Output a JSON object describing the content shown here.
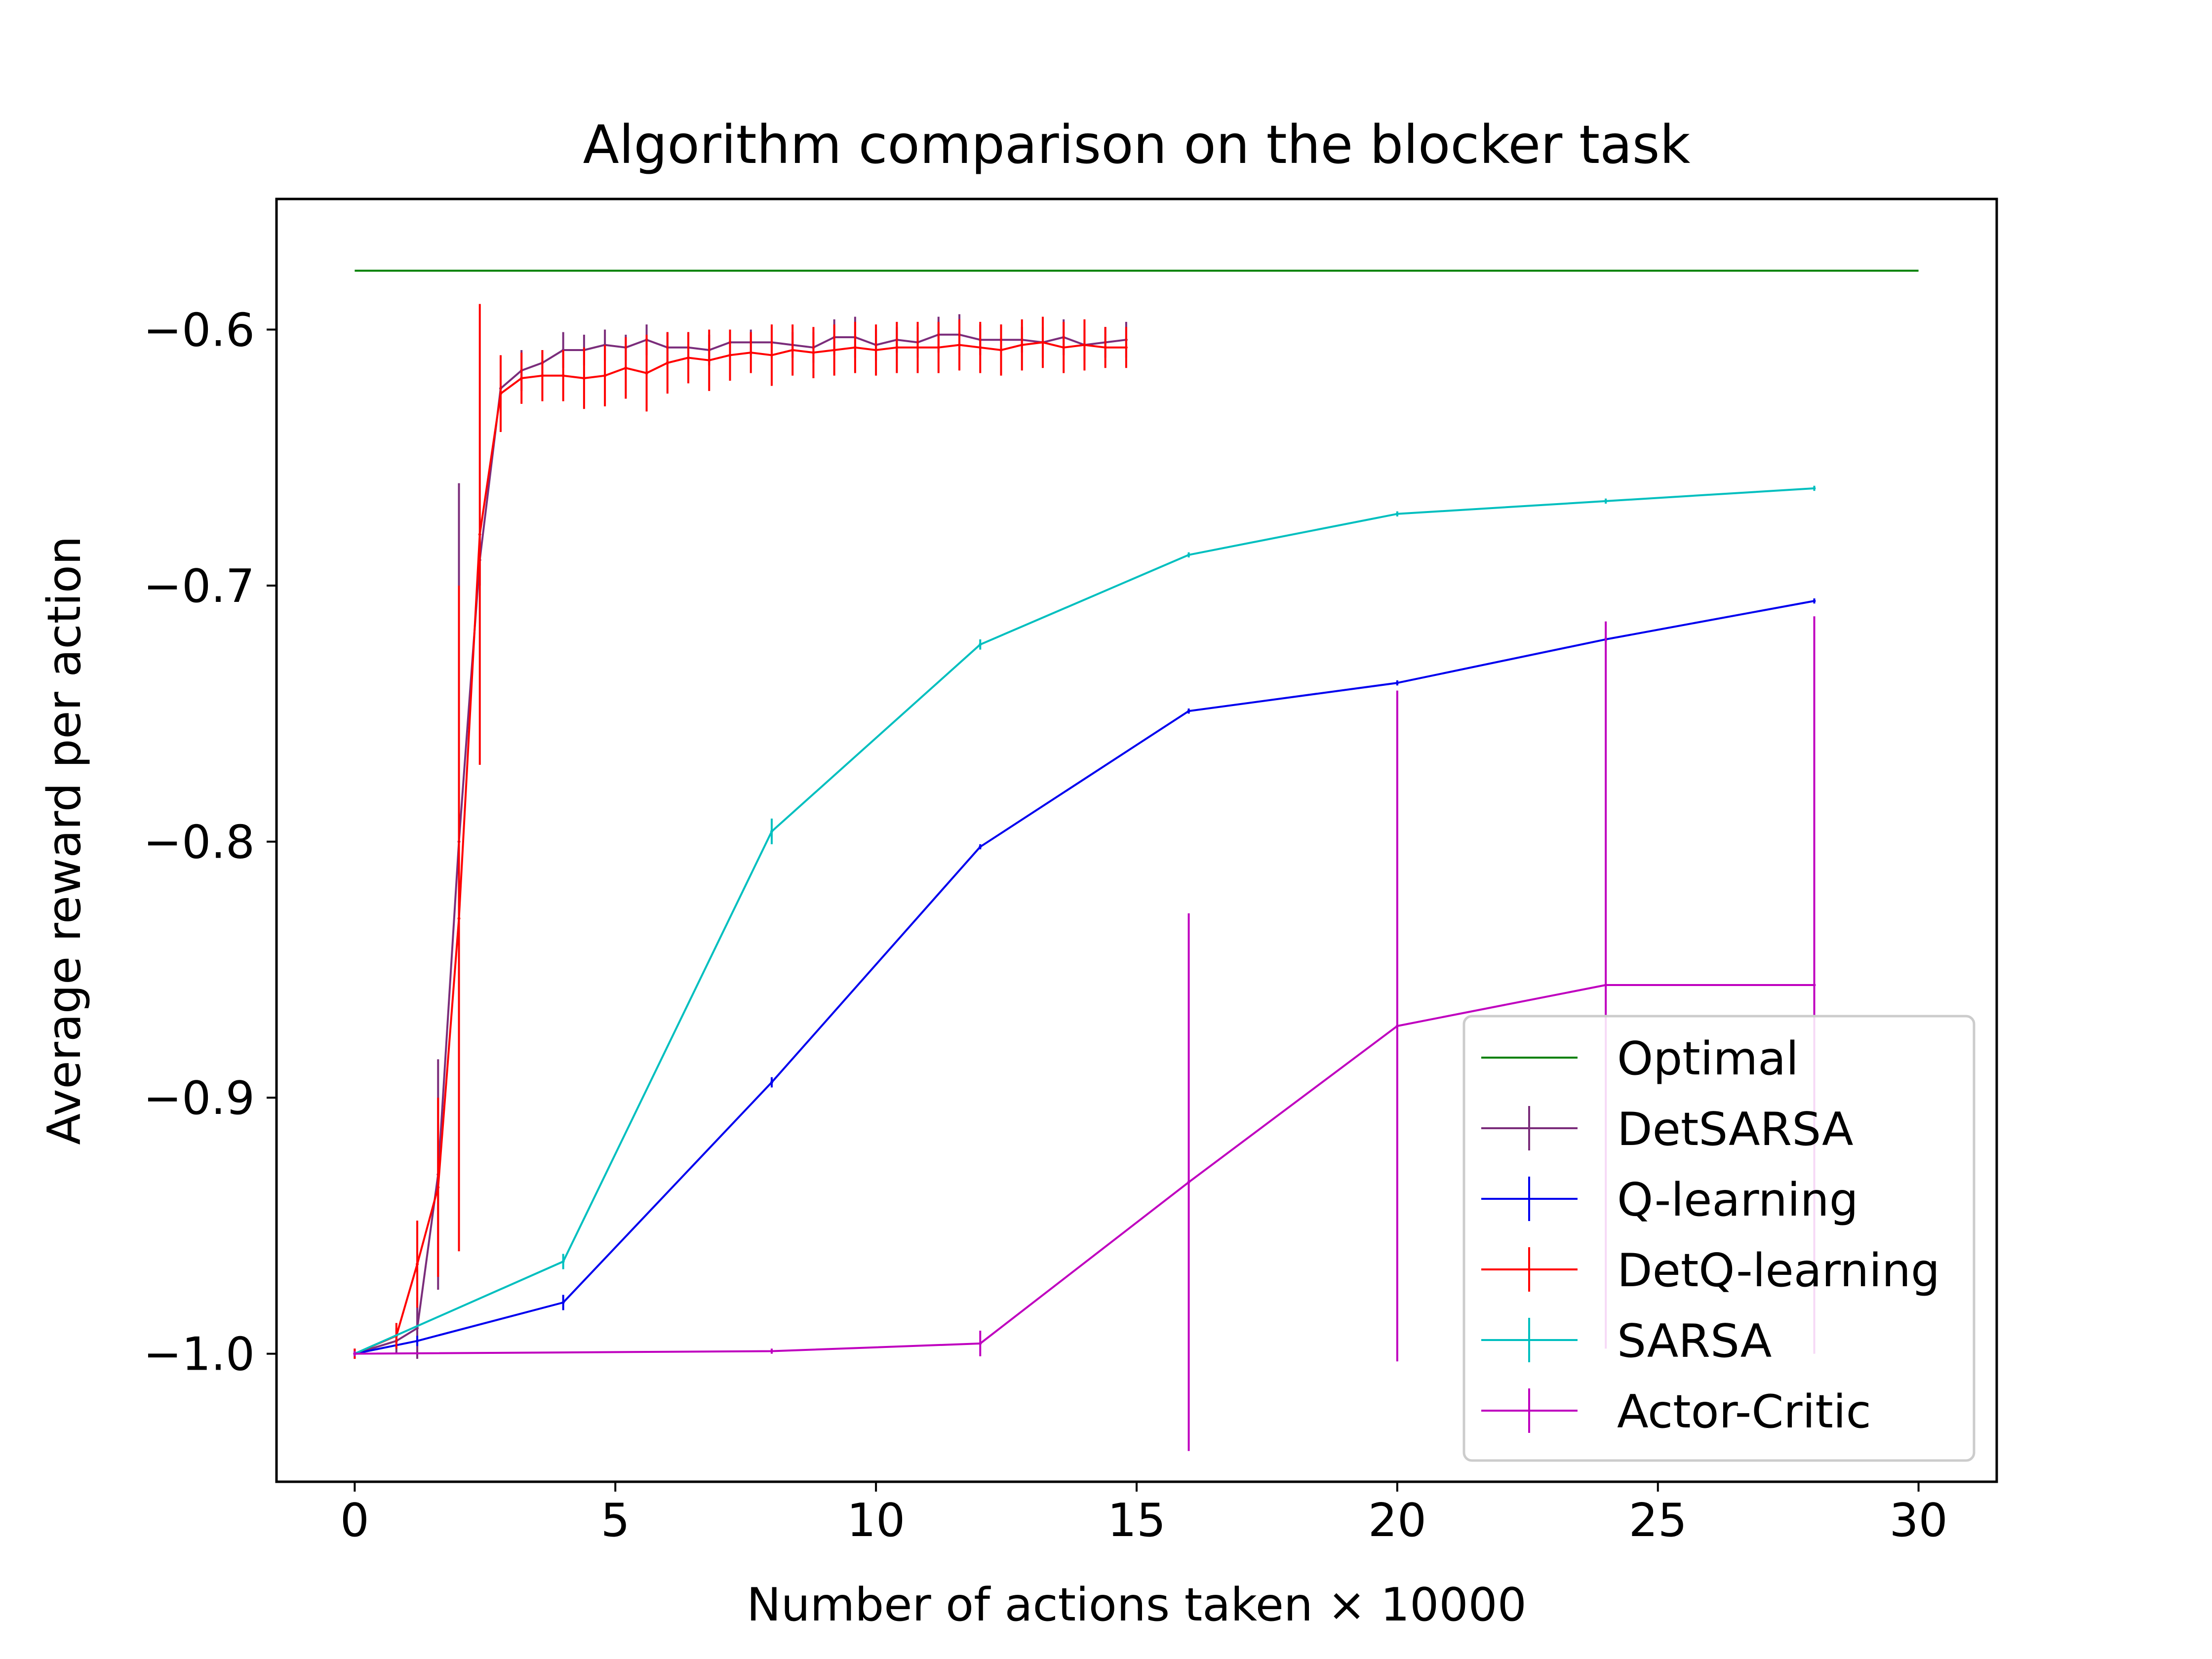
{
  "chart_data": {
    "type": "line",
    "title": "Algorithm comparison on the blocker task",
    "xlabel": "Number of actions taken × 10000",
    "ylabel": "Average reward per action",
    "xlim": [
      -1.5,
      31.5
    ],
    "ylim": [
      -1.05,
      -0.549
    ],
    "xticks": [
      0,
      5,
      10,
      15,
      20,
      25,
      30
    ],
    "xtick_labels": [
      "0",
      "5",
      "10",
      "15",
      "20",
      "25",
      "30"
    ],
    "yticks": [
      -1.0,
      -0.9,
      -0.8,
      -0.7,
      -0.6
    ],
    "ytick_labels": [
      "−1.0",
      "−0.9",
      "−0.8",
      "−0.7",
      "−0.6"
    ],
    "grid": false,
    "legend_position": "lower right",
    "series": [
      {
        "name": "Optimal",
        "color": "#008000",
        "errorbars": false,
        "x": [
          0,
          30
        ],
        "y": [
          -0.577,
          -0.577
        ]
      },
      {
        "name": "DetSARSA",
        "color": "#7b2d7b",
        "errorbars": true,
        "x": [
          0,
          0.8,
          1.2,
          1.6,
          2.0,
          2.4,
          2.8,
          3.2,
          3.6,
          4.0,
          4.4,
          4.8,
          5.2,
          5.6,
          6.0,
          6.4,
          6.8,
          7.2,
          7.6,
          8.0,
          8.4,
          8.8,
          9.2,
          9.6,
          10.0,
          10.4,
          10.8,
          11.2,
          11.6,
          12.0,
          12.4,
          12.8,
          13.2,
          13.6,
          14.0,
          14.4,
          14.8
        ],
        "y": [
          -1.0,
          -0.995,
          -0.99,
          -0.93,
          -0.8,
          -0.69,
          -0.623,
          -0.616,
          -0.613,
          -0.608,
          -0.608,
          -0.606,
          -0.607,
          -0.604,
          -0.607,
          -0.607,
          -0.608,
          -0.605,
          -0.605,
          -0.605,
          -0.606,
          -0.607,
          -0.603,
          -0.603,
          -0.606,
          -0.604,
          -0.605,
          -0.602,
          -0.602,
          -0.604,
          -0.604,
          -0.604,
          -0.605,
          -0.603,
          -0.606,
          -0.605,
          -0.604
        ],
        "err": [
          0.002,
          0.005,
          0.012,
          0.045,
          0.14,
          0.01,
          0.005,
          0.008,
          0.005,
          0.007,
          0.006,
          0.006,
          0.005,
          0.006,
          0.006,
          0.006,
          0.006,
          0.005,
          0.005,
          0.006,
          0.005,
          0.006,
          0.007,
          0.008,
          0.006,
          0.005,
          0.006,
          0.007,
          0.008,
          0.006,
          0.006,
          0.005,
          0.006,
          0.007,
          0.006,
          0.006,
          0.007
        ]
      },
      {
        "name": "Q-learning",
        "color": "#0000ee",
        "errorbars": true,
        "x": [
          0,
          1.2,
          4,
          8,
          12,
          16,
          20,
          24,
          28
        ],
        "y": [
          -1.0,
          -0.995,
          -0.98,
          -0.894,
          -0.802,
          -0.749,
          -0.738,
          -0.721,
          -0.706
        ],
        "err": [
          0.001,
          0.002,
          0.003,
          0.002,
          0.001,
          0.001,
          0.001,
          0.001,
          0.001
        ]
      },
      {
        "name": "DetQ-learning",
        "color": "#ff0000",
        "errorbars": true,
        "x": [
          0,
          0.8,
          1.2,
          1.6,
          2.0,
          2.4,
          2.8,
          3.2,
          3.6,
          4.0,
          4.4,
          4.8,
          5.2,
          5.6,
          6.0,
          6.4,
          6.8,
          7.2,
          7.6,
          8.0,
          8.4,
          8.8,
          9.2,
          9.6,
          10.0,
          10.4,
          10.8,
          11.2,
          11.6,
          12.0,
          12.4,
          12.8,
          13.2,
          13.6,
          14.0,
          14.4,
          14.8
        ],
        "y": [
          -1.0,
          -0.993,
          -0.965,
          -0.935,
          -0.83,
          -0.68,
          -0.625,
          -0.619,
          -0.618,
          -0.618,
          -0.619,
          -0.618,
          -0.615,
          -0.617,
          -0.613,
          -0.611,
          -0.612,
          -0.61,
          -0.609,
          -0.61,
          -0.608,
          -0.609,
          -0.608,
          -0.607,
          -0.608,
          -0.607,
          -0.607,
          -0.607,
          -0.606,
          -0.607,
          -0.608,
          -0.606,
          -0.605,
          -0.607,
          -0.606,
          -0.607,
          -0.607
        ],
        "err": [
          0.002,
          0.005,
          0.017,
          0.035,
          0.13,
          0.09,
          0.015,
          0.01,
          0.01,
          0.01,
          0.012,
          0.012,
          0.012,
          0.015,
          0.012,
          0.01,
          0.012,
          0.01,
          0.008,
          0.012,
          0.01,
          0.01,
          0.01,
          0.01,
          0.01,
          0.01,
          0.01,
          0.01,
          0.01,
          0.01,
          0.01,
          0.01,
          0.01,
          0.01,
          0.01,
          0.008,
          0.008
        ]
      },
      {
        "name": "SARSA",
        "color": "#00bfbf",
        "errorbars": true,
        "x": [
          0,
          4,
          8,
          12,
          16,
          20,
          24,
          28
        ],
        "y": [
          -1.0,
          -0.964,
          -0.796,
          -0.723,
          -0.688,
          -0.672,
          -0.667,
          -0.662
        ],
        "err": [
          0.001,
          0.003,
          0.005,
          0.002,
          0.001,
          0.001,
          0.001,
          0.001
        ]
      },
      {
        "name": "Actor-Critic",
        "color": "#bf00bf",
        "errorbars": true,
        "x": [
          0,
          8,
          12,
          16,
          20,
          24,
          28
        ],
        "y": [
          -1.0,
          -0.999,
          -0.996,
          -0.933,
          -0.872,
          -0.856,
          -0.856
        ],
        "err": [
          0.001,
          0.001,
          0.005,
          0.105,
          0.131,
          0.142,
          0.144
        ]
      }
    ]
  }
}
